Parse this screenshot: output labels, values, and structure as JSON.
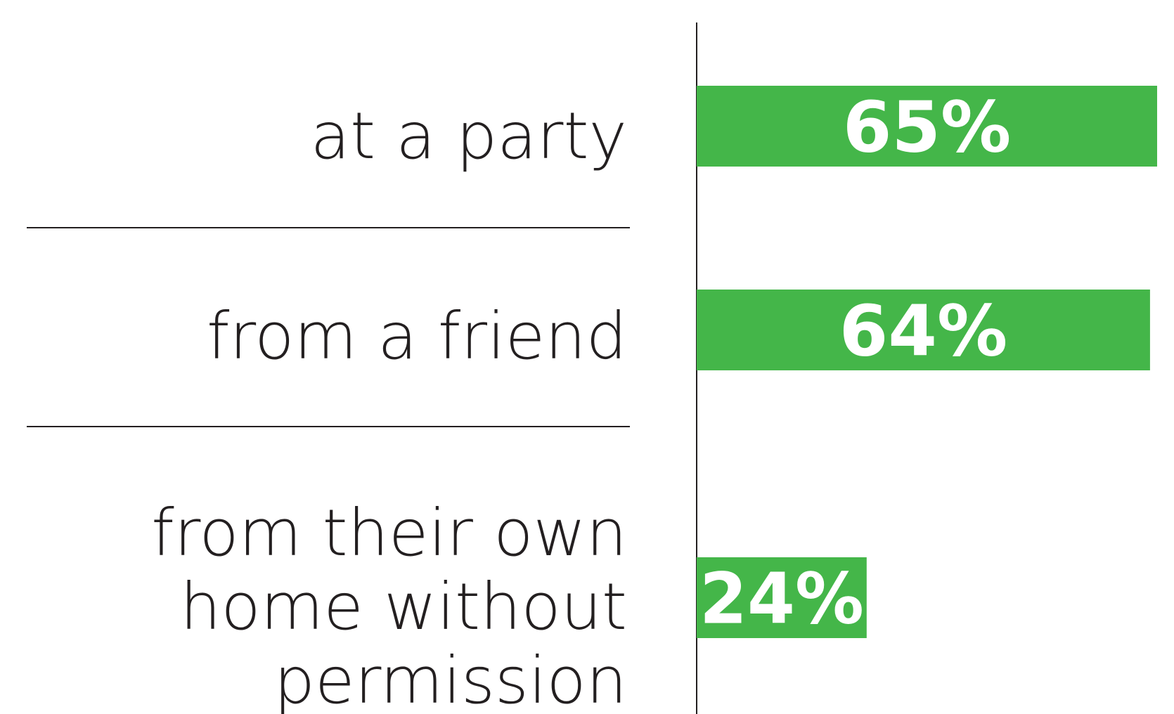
{
  "chart_data": {
    "type": "bar",
    "orientation": "horizontal",
    "categories": [
      [
        "at a party"
      ],
      [
        "from a friend"
      ],
      [
        "from their own",
        "home without",
        "permission"
      ]
    ],
    "values": [
      65,
      64,
      24
    ],
    "value_labels": [
      "65%",
      "64%",
      "24%"
    ],
    "value_unit": "%",
    "xlim": [
      0,
      65
    ],
    "grid": false,
    "legend": "none",
    "colors": {
      "bar": "#44b649",
      "bar_label": "#ffffff",
      "category_text": "#231f20",
      "rule": "#231f20"
    }
  }
}
